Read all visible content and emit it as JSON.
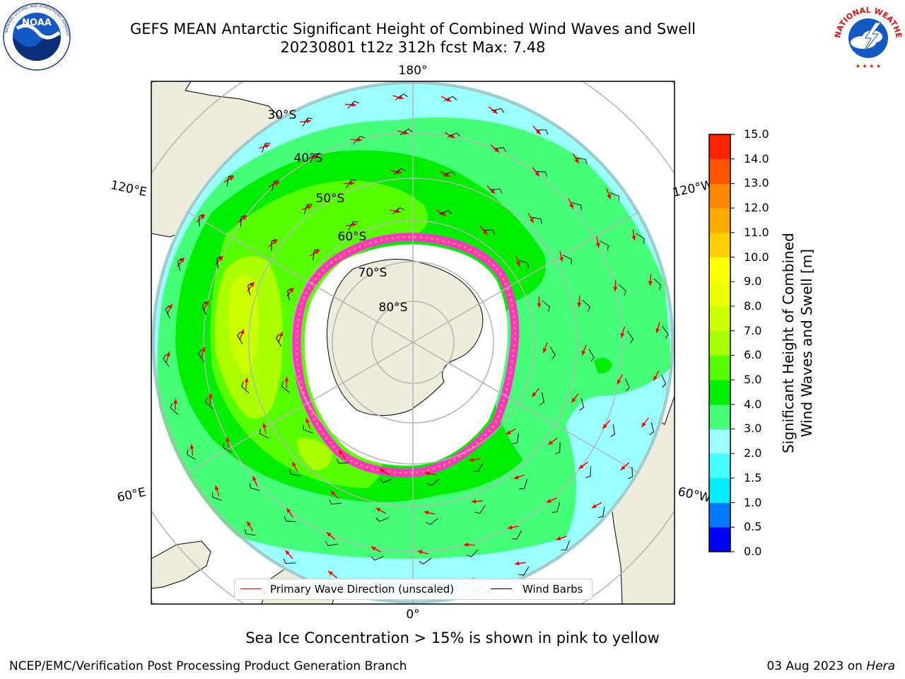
{
  "title": {
    "line1": "GEFS MEAN Antarctic Significant Height of Combined Wind Waves and Swell",
    "line2": "20230801 t12z 312h fcst   Max: 7.48"
  },
  "map": {
    "projection": "south-polar-stereographic",
    "longitude_labels": {
      "top": "180°",
      "bottom": "0°",
      "upper_left": "120°E",
      "upper_right": "120°W",
      "lower_left": "60°E",
      "lower_right": "60°W"
    },
    "latitude_labels": [
      "30°S",
      "40°S",
      "50°S",
      "60°S",
      "70°S",
      "80°S"
    ],
    "land_color": "#efecdc",
    "ice_color": "#ffffff",
    "sea_ice_colors": [
      "#ff33cc",
      "#ffaa00",
      "#ffee33"
    ]
  },
  "colorbar": {
    "title_line1": "Significant Height of Combined",
    "title_line2": "Wind Waves and Swell [m]",
    "ticks": [
      "0.0",
      "0.5",
      "1.0",
      "1.5",
      "2.0",
      "3.0",
      "4.0",
      "5.0",
      "6.0",
      "7.0",
      "8.0",
      "9.0",
      "10.0",
      "11.0",
      "12.0",
      "13.0",
      "14.0",
      "15.0"
    ],
    "colors": [
      "#0000ff",
      "#0077ff",
      "#00eeff",
      "#44ffff",
      "#99ffff",
      "#44ff77",
      "#00ee00",
      "#55ff00",
      "#aaff00",
      "#ccff00",
      "#eeff00",
      "#ffff00",
      "#ffd000",
      "#ffaa00",
      "#ff8800",
      "#ff5500",
      "#ff2200"
    ]
  },
  "legend": {
    "wave_direction": "Primary Wave Direction (unscaled)",
    "wind_barbs": "Wind Barbs",
    "wave_color": "#ff0000",
    "barb_color": "#000000"
  },
  "caption": "Sea Ice Concentration > 15% is shown in pink to yellow",
  "footer": {
    "left": "NCEP/EMC/Verification Post Processing Product Generation Branch",
    "right_date": "03 Aug 2023 on ",
    "right_host": "Hera"
  },
  "logos": {
    "left": "NOAA",
    "right_text": "NATIONAL WEATHER SERVICE"
  }
}
